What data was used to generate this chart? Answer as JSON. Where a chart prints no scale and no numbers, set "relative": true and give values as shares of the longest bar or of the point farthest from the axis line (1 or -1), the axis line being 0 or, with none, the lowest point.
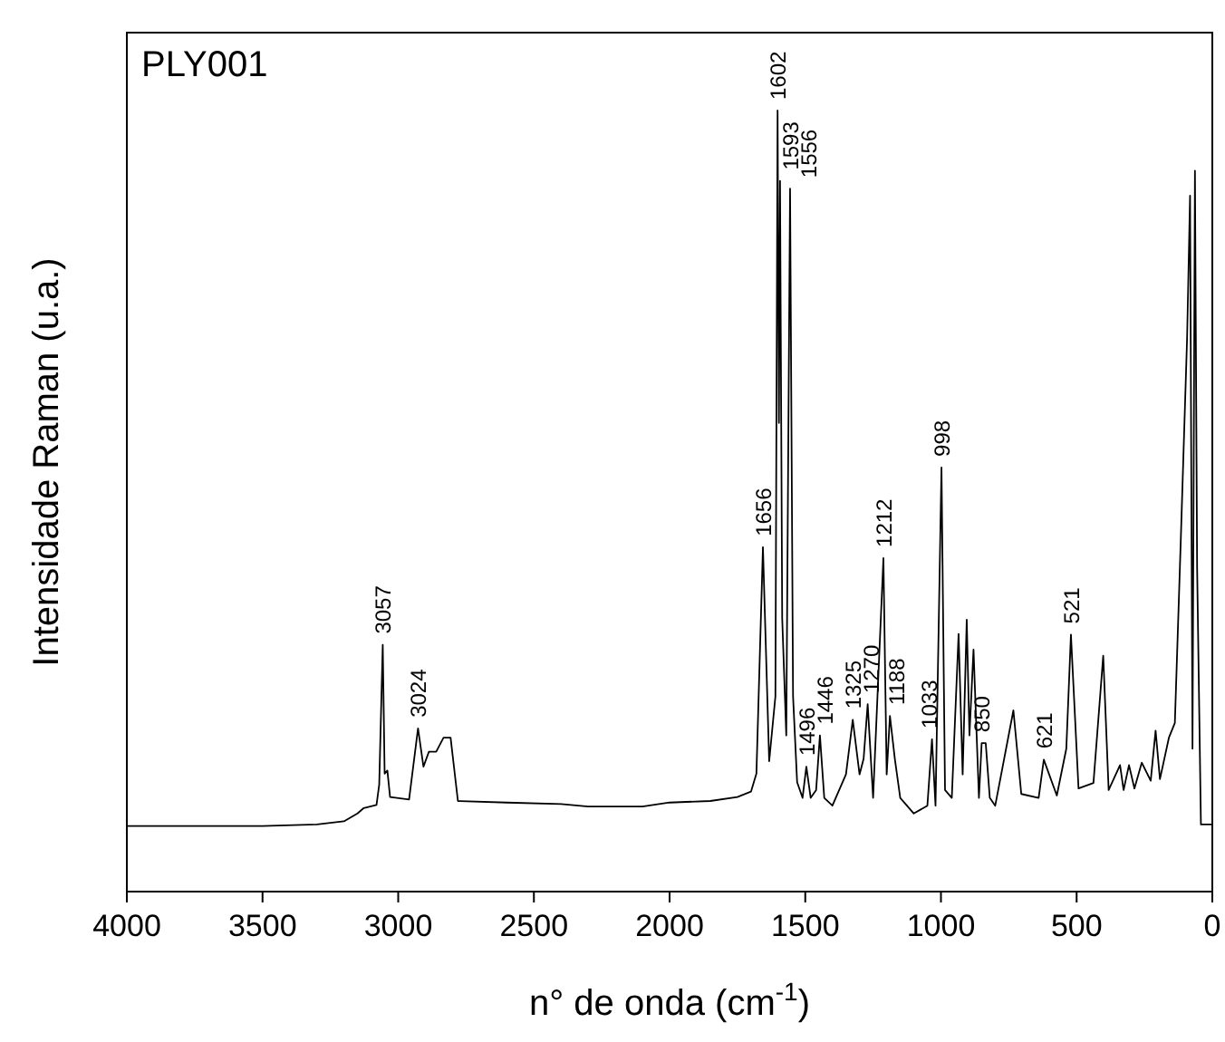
{
  "chart_data": {
    "type": "line",
    "title": "PLY001",
    "xlabel": "n° de onda (cm$^{-1}$)",
    "ylabel": "Intensidade Raman (u.a.)",
    "relative": true,
    "xlim": [
      4000,
      0
    ],
    "xticks": [
      4000,
      3500,
      3000,
      2500,
      2000,
      1500,
      1000,
      500,
      0
    ],
    "line_style": "solid",
    "series": [
      {
        "color": "#000000",
        "x": [
          4000,
          3500,
          3300,
          3200,
          3150,
          3127,
          3080,
          3070,
          3057,
          3050,
          3040,
          3030,
          2960,
          2927,
          2907,
          2887,
          2860,
          2833,
          2807,
          2780,
          2600,
          2400,
          2300,
          2100,
          2000,
          1850,
          1750,
          1700,
          1680,
          1656,
          1633,
          1610,
          1602,
          1597,
          1593,
          1585,
          1570,
          1556,
          1545,
          1530,
          1510,
          1496,
          1480,
          1460,
          1446,
          1430,
          1400,
          1350,
          1325,
          1300,
          1285,
          1270,
          1250,
          1212,
          1200,
          1188,
          1170,
          1150,
          1100,
          1050,
          1033,
          1020,
          998,
          985,
          960,
          935,
          920,
          905,
          895,
          880,
          860,
          850,
          835,
          820,
          800,
          733,
          704,
          640,
          621,
          573,
          538,
          521,
          493,
          438,
          402,
          382,
          340,
          327,
          307,
          287,
          260,
          227,
          209,
          193,
          160,
          138,
          116,
          93,
          82,
          73,
          64,
          56,
          42,
          7,
          0
        ],
        "values": [
          0.084,
          0.084,
          0.086,
          0.09,
          0.1,
          0.107,
          0.111,
          0.137,
          0.316,
          0.151,
          0.155,
          0.121,
          0.118,
          0.209,
          0.16,
          0.179,
          0.179,
          0.197,
          0.197,
          0.116,
          0.114,
          0.112,
          0.109,
          0.109,
          0.114,
          0.116,
          0.121,
          0.128,
          0.151,
          0.441,
          0.167,
          0.25,
          1.0,
          0.6,
          0.91,
          0.35,
          0.2,
          0.9,
          0.25,
          0.14,
          0.12,
          0.16,
          0.12,
          0.13,
          0.2,
          0.12,
          0.11,
          0.15,
          0.22,
          0.15,
          0.17,
          0.24,
          0.12,
          0.427,
          0.15,
          0.225,
          0.17,
          0.12,
          0.1,
          0.11,
          0.195,
          0.11,
          0.543,
          0.13,
          0.12,
          0.33,
          0.15,
          0.348,
          0.2,
          0.31,
          0.12,
          0.19,
          0.19,
          0.12,
          0.11,
          0.232,
          0.125,
          0.12,
          0.169,
          0.123,
          0.183,
          0.329,
          0.132,
          0.139,
          0.302,
          0.13,
          0.162,
          0.13,
          0.162,
          0.132,
          0.165,
          0.142,
          0.206,
          0.144,
          0.197,
          0.216,
          0.452,
          0.708,
          0.891,
          0.183,
          0.923,
          0.415,
          0.086,
          0.086,
          0.086
        ]
      }
    ],
    "annotations": [
      {
        "text": "3057",
        "x": 3057,
        "y": 0.316
      },
      {
        "text": "3024",
        "x": 2927,
        "y": 0.209
      },
      {
        "text": "1656",
        "x": 1656,
        "y": 0.441
      },
      {
        "text": "1602",
        "x": 1602,
        "y": 1.0
      },
      {
        "text": "1593",
        "x": 1593,
        "y": 0.91
      },
      {
        "text": "1556",
        "x": 1556,
        "y": 0.9
      },
      {
        "text": "1496",
        "x": 1496,
        "y": 0.16
      },
      {
        "text": "1446",
        "x": 1446,
        "y": 0.2
      },
      {
        "text": "1325",
        "x": 1325,
        "y": 0.22
      },
      {
        "text": "1270",
        "x": 1270,
        "y": 0.24
      },
      {
        "text": "1212",
        "x": 1212,
        "y": 0.427
      },
      {
        "text": "1188",
        "x": 1188,
        "y": 0.225
      },
      {
        "text": "1033",
        "x": 1033,
        "y": 0.195
      },
      {
        "text": "998",
        "x": 998,
        "y": 0.543
      },
      {
        "text": "850",
        "x": 850,
        "y": 0.19
      },
      {
        "text": "621",
        "x": 621,
        "y": 0.169
      },
      {
        "text": "521",
        "x": 521,
        "y": 0.329
      }
    ]
  }
}
